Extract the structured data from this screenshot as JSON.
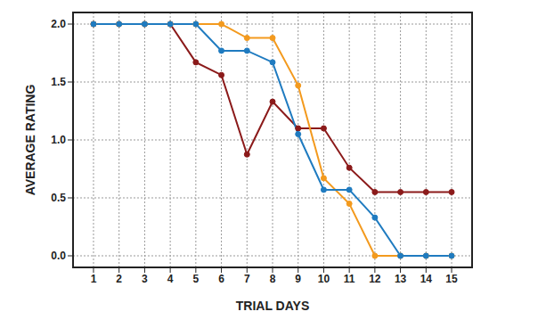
{
  "chart_data": {
    "type": "line",
    "x_label": "TRIAL DAYS",
    "y_label": "AVERAGE RATING",
    "x": [
      1,
      2,
      3,
      4,
      5,
      6,
      7,
      8,
      9,
      10,
      11,
      12,
      13,
      14,
      15
    ],
    "series": [
      {
        "color": "#8b1a1a",
        "marker": "circle",
        "values": [
          2.0,
          2.0,
          2.0,
          2.0,
          1.67,
          1.56,
          0.875,
          1.33,
          1.1,
          1.1,
          0.76,
          0.55,
          0.55,
          0.55,
          0.55
        ]
      },
      {
        "color": "#f39a1e",
        "marker": "circle",
        "values": [
          2.0,
          2.0,
          2.0,
          2.0,
          2.0,
          2.0,
          1.88,
          1.88,
          1.47,
          0.67,
          0.45,
          0.0,
          0.0,
          0.0,
          0.0
        ]
      },
      {
        "color": "#1f7bc0",
        "marker": "circle",
        "values": [
          2.0,
          2.0,
          2.0,
          2.0,
          2.0,
          1.77,
          1.77,
          1.67,
          1.05,
          0.57,
          0.57,
          0.33,
          0.0,
          0.0,
          0.0
        ]
      }
    ],
    "xlim": [
      0.2,
      15.8
    ],
    "xticks": [
      1,
      2,
      3,
      4,
      5,
      6,
      7,
      8,
      9,
      10,
      11,
      12,
      13,
      14,
      15
    ],
    "ylim": [
      -0.1,
      2.1
    ],
    "yticks": [
      {
        "value": 0,
        "label": "0.0"
      },
      {
        "value": 0.5,
        "label": "0.5"
      },
      {
        "value": 1,
        "label": "1.0"
      },
      {
        "value": 1.5,
        "label": "1.5"
      },
      {
        "value": 2,
        "label": "2.0"
      }
    ],
    "grid": true,
    "legend": false
  }
}
